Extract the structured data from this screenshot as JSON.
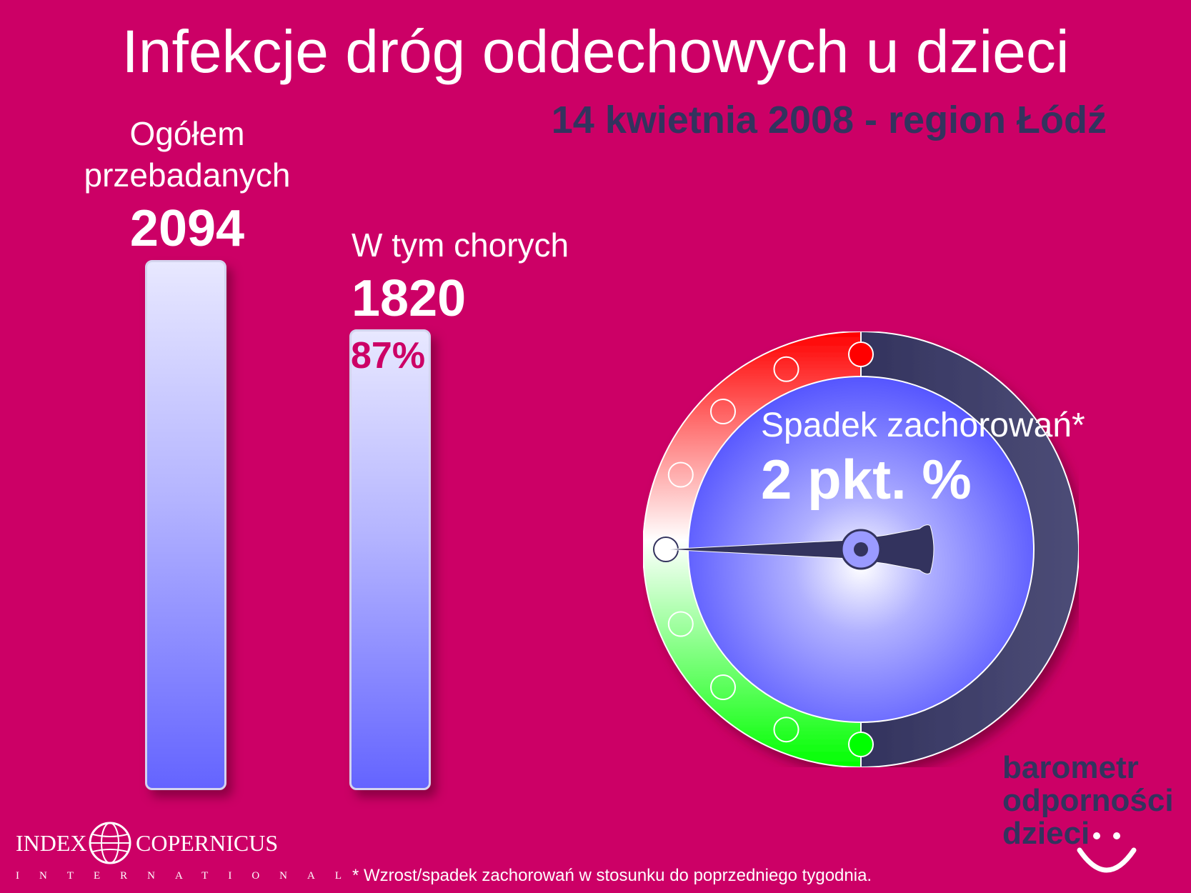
{
  "title": "Infekcje dróg oddechowych u dzieci",
  "subtitle": "14 kwietnia 2008 - region Łódź",
  "chart_data": [
    {
      "type": "bar",
      "categories": [
        "Ogółem przebadanych",
        "W tym chorych"
      ],
      "values": [
        2094,
        1820
      ],
      "category_label_lines": [
        [
          "Ogółem",
          "przebadanych"
        ],
        [
          "W tym chorych"
        ]
      ],
      "value_labels": [
        "2094",
        "1820"
      ],
      "percent_label": "87%",
      "ylim": [
        0,
        2094
      ]
    },
    {
      "type": "gauge",
      "label": "Spadek zachorowań*",
      "value_label": "2 pkt. %",
      "value": -2,
      "range_colors": {
        "top": "#ff0000",
        "middle": "#ffffff",
        "bottom": "#00ff00"
      },
      "dial_markers": 9,
      "needle_position": "middle"
    }
  ],
  "colors": {
    "background": "#cc0066",
    "subtitle": "#33335e",
    "bar_top": "#e8e8ff",
    "bar_bottom": "#6464ff",
    "gauge_face": "#6666ff",
    "gauge_ring_dark": "#33335e"
  },
  "logo": {
    "lines": [
      "barometr",
      "odporności",
      "dzieci"
    ],
    "icon": "smiley-icon"
  },
  "publisher": {
    "left": "INDEX",
    "right": "COPERNICUS",
    "sub": "INTERNATIONAL",
    "icon": "globe-icon"
  },
  "footnote": "* Wzrost/spadek zachorowań w stosunku do poprzedniego tygodnia."
}
